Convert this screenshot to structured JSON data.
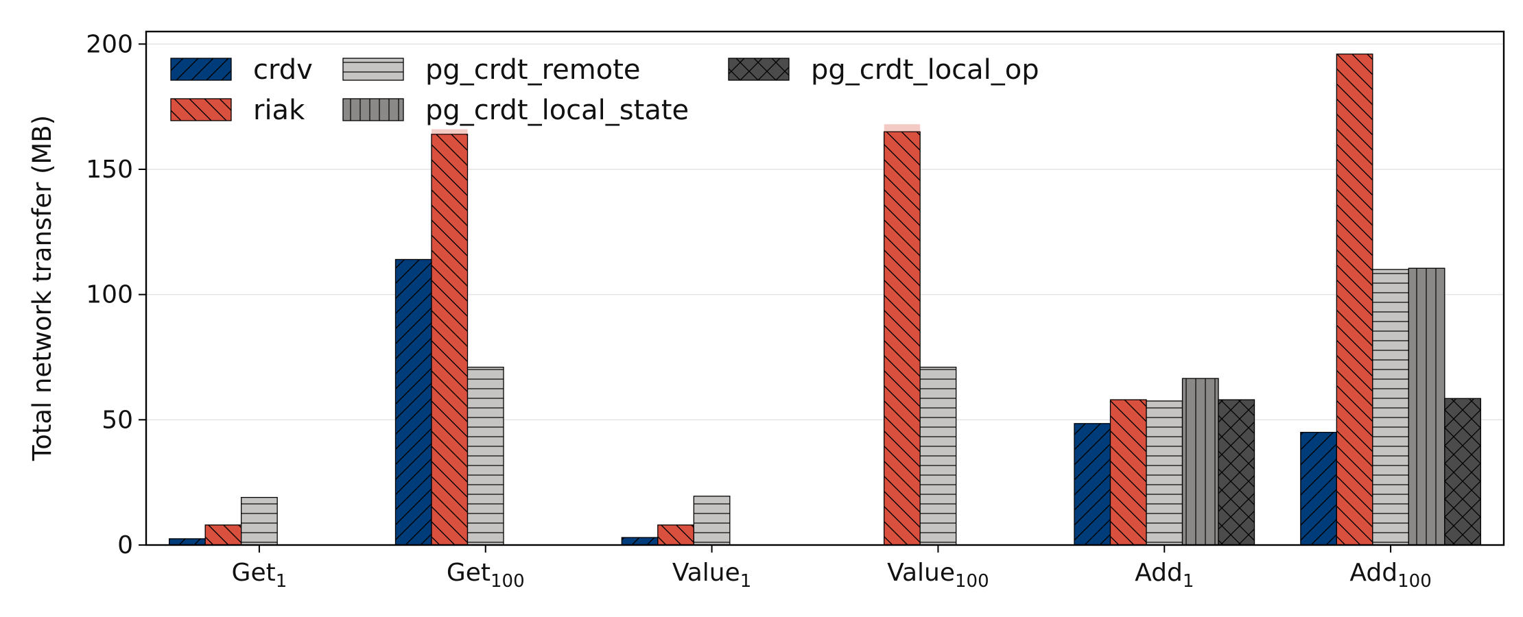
{
  "chart_data": {
    "type": "bar",
    "ylabel": "Total network transfer (MB)",
    "xlabel": "",
    "ylim": [
      0,
      205
    ],
    "yticks": [
      0,
      50,
      100,
      150,
      200
    ],
    "grid": "horizontal",
    "legend_position": "top-left",
    "categories": [
      {
        "base": "Get",
        "sub": "1"
      },
      {
        "base": "Get",
        "sub": "100"
      },
      {
        "base": "Value",
        "sub": "1"
      },
      {
        "base": "Value",
        "sub": "100"
      },
      {
        "base": "Add",
        "sub": "1"
      },
      {
        "base": "Add",
        "sub": "100"
      }
    ],
    "series": [
      {
        "name": "crdv",
        "color": "#003c7a",
        "hatch": "forward-diagonal",
        "values": [
          2.5,
          114,
          3,
          null,
          48.5,
          45
        ]
      },
      {
        "name": "riak",
        "color": "#d9503f",
        "hatch": "back-diagonal",
        "values": [
          8,
          164,
          8,
          165,
          58,
          196
        ],
        "overflow_above": [
          0,
          2,
          0,
          3,
          0,
          0
        ]
      },
      {
        "name": "pg_crdt_remote",
        "color": "#c6c4c2",
        "hatch": "horizontal",
        "values": [
          19,
          71,
          19.5,
          71,
          57.5,
          110
        ]
      },
      {
        "name": "pg_crdt_local_state",
        "color": "#8a8988",
        "hatch": "vertical",
        "values": [
          null,
          null,
          null,
          null,
          66.5,
          110.5
        ]
      },
      {
        "name": "pg_crdt_local_op",
        "color": "#4b4b4b",
        "hatch": "cross",
        "values": [
          null,
          null,
          null,
          null,
          58,
          58.5
        ]
      }
    ]
  }
}
